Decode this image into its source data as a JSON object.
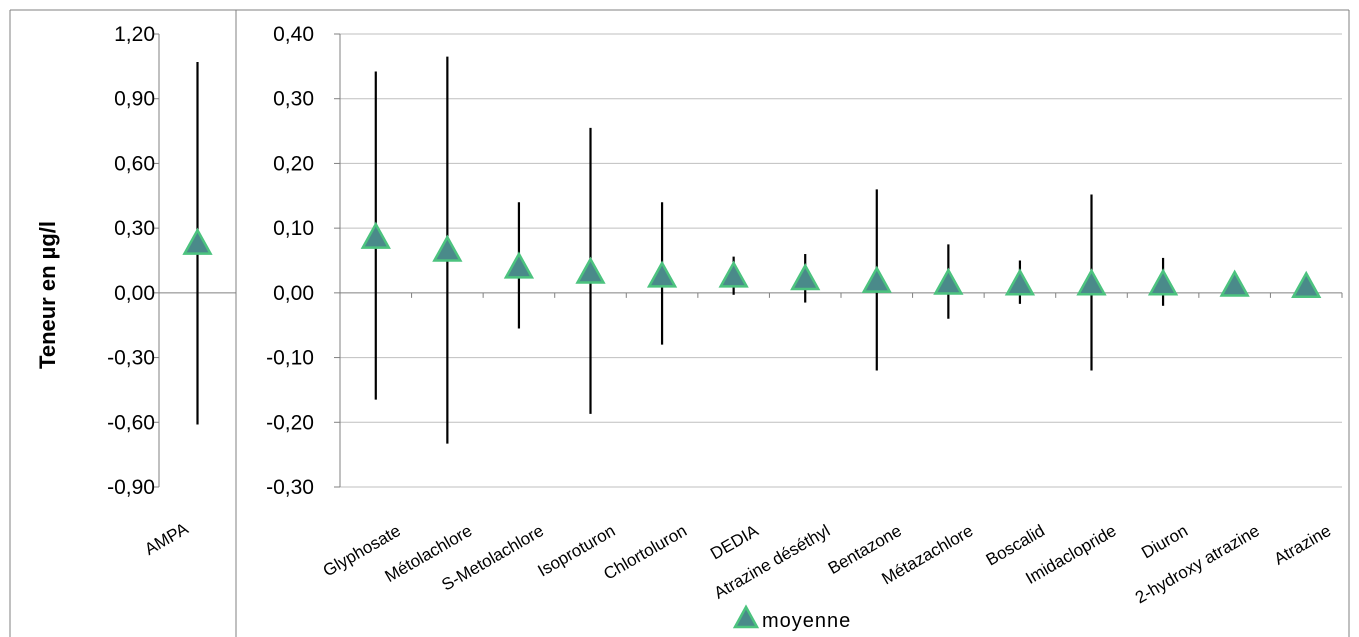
{
  "y_axis_label": "Teneur en µg/l",
  "legend_label": "moyenne",
  "colors": {
    "marker_fill": "#4A8A8A",
    "marker_stroke": "#4CC37F",
    "error_bar": "#000000",
    "grid": "#BFBFBF",
    "axis": "#808080"
  },
  "chart_data": [
    {
      "type": "scatter",
      "marker": "triangle",
      "ylim": [
        -0.9,
        1.2
      ],
      "yticks": [
        "1,20",
        "0,90",
        "0,60",
        "0,30",
        "0,00",
        "-0,30",
        "-0,60",
        "-0,90"
      ],
      "ytick_values": [
        1.2,
        0.9,
        0.6,
        0.3,
        0.0,
        -0.3,
        -0.6,
        -0.9
      ],
      "grid": false,
      "categories": [
        "AMPA"
      ],
      "series": [
        {
          "name": "moyenne",
          "values": [
            0.23
          ],
          "error_low": [
            -0.61
          ],
          "error_high": [
            1.07
          ]
        }
      ]
    },
    {
      "type": "scatter",
      "marker": "triangle",
      "ylim": [
        -0.3,
        0.4
      ],
      "yticks": [
        "0,40",
        "0,30",
        "0,20",
        "0,10",
        "0,00",
        "-0,10",
        "-0,20",
        "-0,30"
      ],
      "ytick_values": [
        0.4,
        0.3,
        0.2,
        0.1,
        0.0,
        -0.1,
        -0.2,
        -0.3
      ],
      "grid": true,
      "legend": "bottom",
      "categories": [
        "Glyphosate",
        "Métolachlore",
        "S-Metolachlore",
        "Isoproturon",
        "Chlortoluron",
        "DEDIA",
        "Atrazine déséthyl",
        "Bentazone",
        "Métazachlore",
        "Boscalid",
        "Imidaclopride",
        "Diuron",
        "2-hydroxy atrazine",
        "Atrazine"
      ],
      "series": [
        {
          "name": "moyenne",
          "values": [
            0.086,
            0.066,
            0.04,
            0.032,
            0.026,
            0.026,
            0.022,
            0.018,
            0.015,
            0.014,
            0.014,
            0.014,
            0.012,
            0.01
          ],
          "error_low": [
            -0.165,
            -0.233,
            -0.055,
            -0.187,
            -0.08,
            -0.003,
            -0.015,
            -0.12,
            -0.04,
            -0.017,
            -0.12,
            -0.02,
            null,
            null
          ],
          "error_high": [
            0.342,
            0.365,
            0.14,
            0.255,
            0.14,
            0.056,
            0.06,
            0.16,
            0.075,
            0.05,
            0.152,
            0.054,
            null,
            null
          ]
        }
      ]
    }
  ]
}
